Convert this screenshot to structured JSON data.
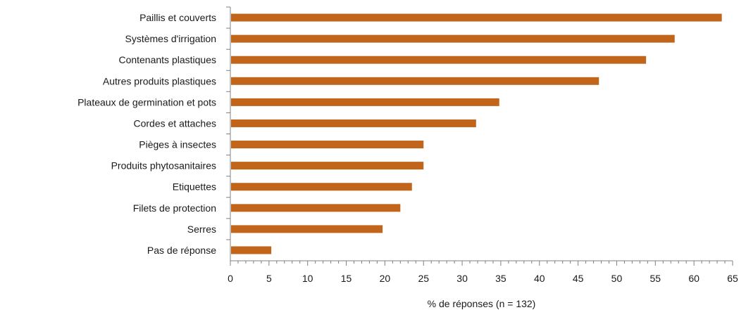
{
  "chart_data": {
    "type": "bar",
    "orientation": "horizontal",
    "categories": [
      "Paillis et couverts",
      "Systèmes d'irrigation",
      "Contenants plastiques",
      "Autres produits plastiques",
      "Plateaux de germination et pots",
      "Cordes et attaches",
      "Pièges à insectes",
      "Produits phytosanitaires",
      "Etiquettes",
      "Filets de protection",
      "Serres",
      "Pas de réponse"
    ],
    "values": [
      63.6,
      57.5,
      53.8,
      47.7,
      34.8,
      31.8,
      25.0,
      25.0,
      23.5,
      22.0,
      19.7,
      5.3
    ],
    "xlabel": "% de réponses (n = 132)",
    "ylabel": "",
    "xlim": [
      0,
      65
    ],
    "xticks": [
      0,
      5,
      10,
      15,
      20,
      25,
      30,
      35,
      40,
      45,
      50,
      55,
      60,
      65
    ],
    "grid": false,
    "bar_color": "#c0651a"
  }
}
